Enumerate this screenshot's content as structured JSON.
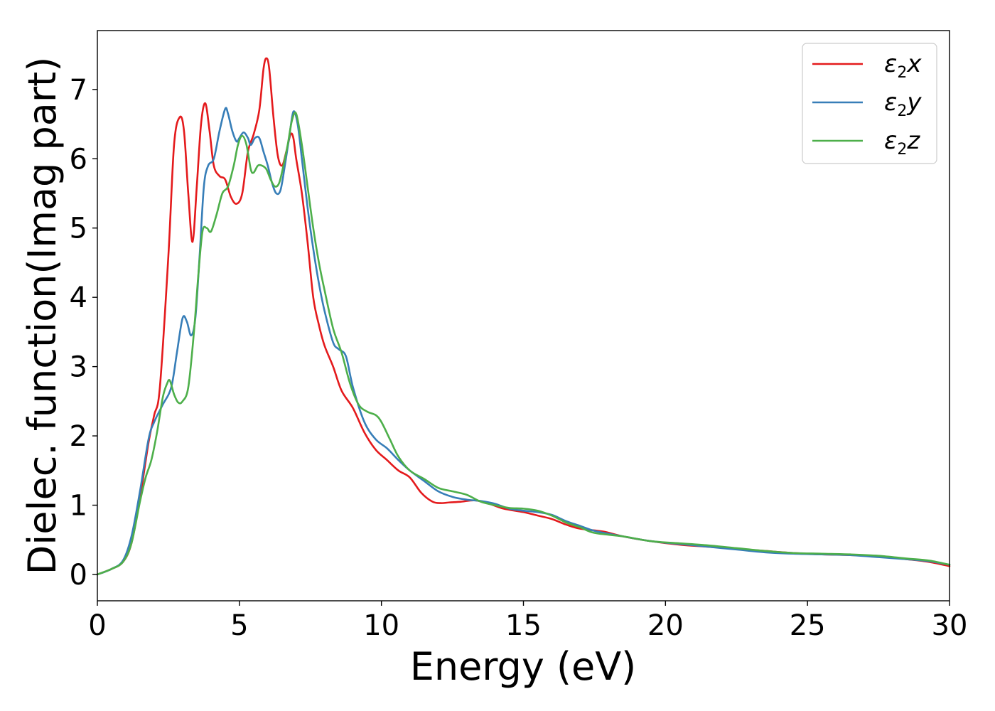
{
  "chart_data": {
    "type": "line",
    "xlabel": "Energy (eV)",
    "ylabel": "Dielec. function(Imag part)",
    "xlim": [
      0,
      30
    ],
    "ylim": [
      -0.38,
      7.85
    ],
    "x_ticks": [
      "0",
      "5",
      "10",
      "15",
      "20",
      "25",
      "30"
    ],
    "y_ticks": [
      "0",
      "1",
      "2",
      "3",
      "4",
      "5",
      "6",
      "7"
    ],
    "grid": false,
    "legend_position": "top-right",
    "series": [
      {
        "name": "ε2x",
        "legend_base": "ε",
        "legend_sub": "2",
        "legend_var": "x",
        "color": "#e41a1c",
        "x": [
          0,
          0.5,
          0.9,
          1.2,
          1.5,
          1.8,
          2.0,
          2.2,
          2.5,
          2.7,
          2.9,
          3.05,
          3.2,
          3.35,
          3.5,
          3.65,
          3.8,
          3.95,
          4.1,
          4.3,
          4.5,
          4.7,
          4.9,
          5.1,
          5.3,
          5.5,
          5.7,
          5.85,
          5.95,
          6.05,
          6.2,
          6.35,
          6.5,
          6.65,
          6.8,
          6.9,
          7.0,
          7.2,
          7.4,
          7.6,
          7.8,
          8.0,
          8.3,
          8.6,
          9.0,
          9.4,
          9.8,
          10.2,
          10.6,
          11.0,
          11.4,
          11.8,
          12.1,
          12.4,
          12.8,
          13.3,
          13.8,
          14.3,
          15.0,
          15.5,
          16.0,
          16.5,
          17.0,
          17.8,
          18.5,
          19.5,
          20.5,
          21.5,
          22.5,
          23.5,
          24.5,
          25.5,
          26.5,
          27.5,
          28.5,
          29.3,
          30
        ],
        "y": [
          0,
          0.08,
          0.18,
          0.45,
          1.1,
          1.9,
          2.3,
          2.7,
          4.6,
          6.2,
          6.6,
          6.4,
          5.5,
          4.8,
          5.6,
          6.5,
          6.8,
          6.4,
          5.9,
          5.75,
          5.7,
          5.45,
          5.35,
          5.5,
          6.1,
          6.35,
          6.7,
          7.3,
          7.45,
          7.3,
          6.6,
          6.05,
          5.9,
          6.1,
          6.35,
          6.3,
          6.0,
          5.5,
          4.8,
          4.0,
          3.6,
          3.3,
          3.0,
          2.65,
          2.4,
          2.05,
          1.8,
          1.65,
          1.5,
          1.4,
          1.18,
          1.05,
          1.03,
          1.04,
          1.05,
          1.07,
          1.02,
          0.95,
          0.9,
          0.85,
          0.8,
          0.72,
          0.66,
          0.62,
          0.55,
          0.48,
          0.43,
          0.4,
          0.37,
          0.34,
          0.31,
          0.29,
          0.28,
          0.26,
          0.22,
          0.18,
          0.12
        ]
      },
      {
        "name": "ε2y",
        "legend_base": "ε",
        "legend_sub": "2",
        "legend_var": "y",
        "color": "#377eb8",
        "x": [
          0,
          0.5,
          0.9,
          1.2,
          1.5,
          1.8,
          2.0,
          2.3,
          2.6,
          2.8,
          3.0,
          3.15,
          3.3,
          3.45,
          3.6,
          3.75,
          3.9,
          4.1,
          4.3,
          4.5,
          4.6,
          4.75,
          4.9,
          5.0,
          5.15,
          5.3,
          5.4,
          5.55,
          5.7,
          5.85,
          6.0,
          6.15,
          6.3,
          6.45,
          6.6,
          6.75,
          6.9,
          7.05,
          7.2,
          7.4,
          7.6,
          7.8,
          8.0,
          8.3,
          8.5,
          8.75,
          9.0,
          9.4,
          9.8,
          10.2,
          10.6,
          11.0,
          11.5,
          12.0,
          12.5,
          13.0,
          13.5,
          14.0,
          14.5,
          15.0,
          15.5,
          16.0,
          16.5,
          17.0,
          17.5,
          18.5,
          19.5,
          20.5,
          21.5,
          22.5,
          23.5,
          24.5,
          25.5,
          26.5,
          27.5,
          28.5,
          29.3,
          30
        ],
        "y": [
          0,
          0.08,
          0.2,
          0.55,
          1.2,
          1.95,
          2.2,
          2.45,
          2.7,
          3.2,
          3.7,
          3.65,
          3.45,
          3.7,
          4.6,
          5.6,
          5.9,
          6.0,
          6.4,
          6.72,
          6.65,
          6.4,
          6.25,
          6.3,
          6.38,
          6.3,
          6.2,
          6.3,
          6.3,
          6.1,
          5.9,
          5.65,
          5.5,
          5.55,
          5.9,
          6.3,
          6.68,
          6.5,
          6.0,
          5.3,
          4.7,
          4.2,
          3.8,
          3.35,
          3.25,
          3.15,
          2.7,
          2.2,
          1.95,
          1.82,
          1.65,
          1.5,
          1.35,
          1.2,
          1.12,
          1.08,
          1.06,
          1.02,
          0.95,
          0.92,
          0.9,
          0.86,
          0.77,
          0.7,
          0.63,
          0.55,
          0.48,
          0.44,
          0.4,
          0.36,
          0.32,
          0.3,
          0.29,
          0.28,
          0.25,
          0.22,
          0.19,
          0.14
        ]
      },
      {
        "name": "ε2z",
        "legend_base": "ε",
        "legend_sub": "2",
        "legend_var": "z",
        "color": "#4daf4a",
        "x": [
          0,
          0.5,
          0.9,
          1.2,
          1.5,
          1.7,
          1.9,
          2.1,
          2.3,
          2.45,
          2.55,
          2.7,
          2.85,
          3.0,
          3.2,
          3.4,
          3.55,
          3.7,
          3.85,
          4.0,
          4.2,
          4.4,
          4.6,
          4.8,
          4.95,
          5.1,
          5.25,
          5.4,
          5.5,
          5.65,
          5.8,
          5.95,
          6.1,
          6.25,
          6.4,
          6.55,
          6.7,
          6.85,
          7.0,
          7.2,
          7.4,
          7.6,
          7.8,
          8.0,
          8.3,
          8.6,
          8.9,
          9.2,
          9.5,
          9.8,
          10.0,
          10.3,
          10.6,
          11.0,
          11.5,
          12.0,
          12.5,
          13.0,
          13.5,
          14.0,
          14.5,
          15.0,
          15.5,
          16.0,
          16.5,
          17.0,
          17.5,
          18.5,
          19.5,
          20.5,
          21.5,
          22.5,
          23.5,
          24.5,
          25.5,
          26.5,
          27.5,
          28.5,
          29.3,
          30
        ],
        "y": [
          0,
          0.08,
          0.18,
          0.45,
          1.05,
          1.4,
          1.65,
          2.05,
          2.55,
          2.75,
          2.8,
          2.6,
          2.48,
          2.5,
          2.7,
          3.5,
          4.3,
          4.95,
          5.0,
          4.95,
          5.2,
          5.5,
          5.6,
          5.9,
          6.2,
          6.33,
          6.2,
          5.85,
          5.8,
          5.9,
          5.9,
          5.85,
          5.7,
          5.6,
          5.65,
          5.9,
          6.2,
          6.55,
          6.65,
          6.2,
          5.6,
          5.0,
          4.5,
          4.1,
          3.55,
          3.2,
          2.75,
          2.45,
          2.35,
          2.3,
          2.2,
          1.95,
          1.7,
          1.5,
          1.38,
          1.25,
          1.2,
          1.15,
          1.05,
          1.0,
          0.96,
          0.95,
          0.92,
          0.85,
          0.75,
          0.68,
          0.6,
          0.55,
          0.48,
          0.45,
          0.42,
          0.38,
          0.34,
          0.31,
          0.3,
          0.29,
          0.27,
          0.23,
          0.2,
          0.14
        ]
      }
    ]
  }
}
